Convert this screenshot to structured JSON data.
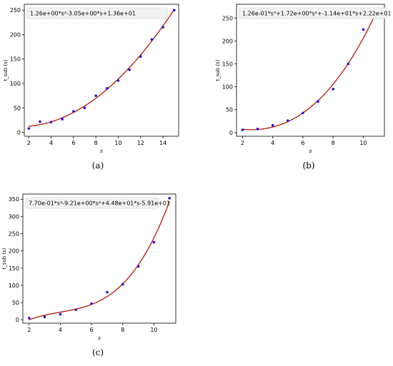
{
  "chart_data": [
    {
      "type": "scatter",
      "caption": "(a)",
      "equation": "1.26e+00*s²-3.05e+00*s+1.36e+01",
      "xlabel": "s",
      "ylabel": "t_sub (s)",
      "xlim": [
        1.6,
        15.4
      ],
      "ylim": [
        -8,
        262
      ],
      "xticks": [
        2,
        4,
        6,
        8,
        10,
        12,
        14
      ],
      "yticks": [
        0,
        50,
        100,
        150,
        200,
        250
      ],
      "fit_coeffs": [
        1.26,
        -3.05,
        13.6
      ],
      "fit_range": [
        2,
        15
      ],
      "points": {
        "x": [
          2,
          3,
          4,
          5,
          6,
          7,
          8,
          9,
          10,
          11,
          12,
          13,
          14,
          15
        ],
        "y": [
          8,
          22,
          21,
          27,
          43,
          50,
          75,
          90,
          106,
          128,
          155,
          190,
          215,
          250
        ]
      },
      "colors": {
        "points": "#2b0fd6",
        "fit": "#b01a0a"
      }
    },
    {
      "type": "scatter",
      "caption": "(b)",
      "equation": "1.26e-01*s³+1.72e+00*s²+-1.14e+01*s+2.22e+01",
      "xlabel": "s",
      "ylabel": "t_sub (s)",
      "xlim": [
        1.6,
        11.4
      ],
      "ylim": [
        -8,
        280
      ],
      "xticks": [
        2,
        4,
        6,
        8,
        10
      ],
      "yticks": [
        0,
        50,
        100,
        150,
        200,
        250
      ],
      "fit_coeffs": [
        0.126,
        1.72,
        -11.4,
        22.2
      ],
      "fit_range": [
        2,
        11
      ],
      "points": {
        "x": [
          2,
          3,
          4,
          5,
          6,
          7,
          8,
          9,
          10,
          11
        ],
        "y": [
          6,
          8,
          16,
          26,
          43,
          68,
          95,
          150,
          225,
          262
        ]
      },
      "colors": {
        "points": "#2b0fd6",
        "fit": "#b01a0a"
      }
    },
    {
      "type": "scatter",
      "caption": "(c)",
      "equation": "7.70e-01*s³-9.21e+00*s²+4.48e+01*s-5.91e+01",
      "xlabel": "s",
      "ylabel": "t_sub (s)",
      "xlim": [
        1.6,
        11.4
      ],
      "ylim": [
        -10,
        365
      ],
      "xticks": [
        2,
        4,
        6,
        8,
        10
      ],
      "yticks": [
        0,
        50,
        100,
        150,
        200,
        250,
        300,
        350
      ],
      "fit_coeffs": [
        0.77,
        -9.21,
        44.8,
        -59.1
      ],
      "fit_range": [
        2,
        11
      ],
      "points": {
        "x": [
          2,
          3,
          4,
          5,
          6,
          7,
          8,
          9,
          10,
          11
        ],
        "y": [
          5,
          8,
          16,
          29,
          47,
          80,
          103,
          155,
          225,
          353
        ]
      },
      "colors": {
        "points": "#2b0fd6",
        "fit": "#b01a0a"
      }
    }
  ]
}
